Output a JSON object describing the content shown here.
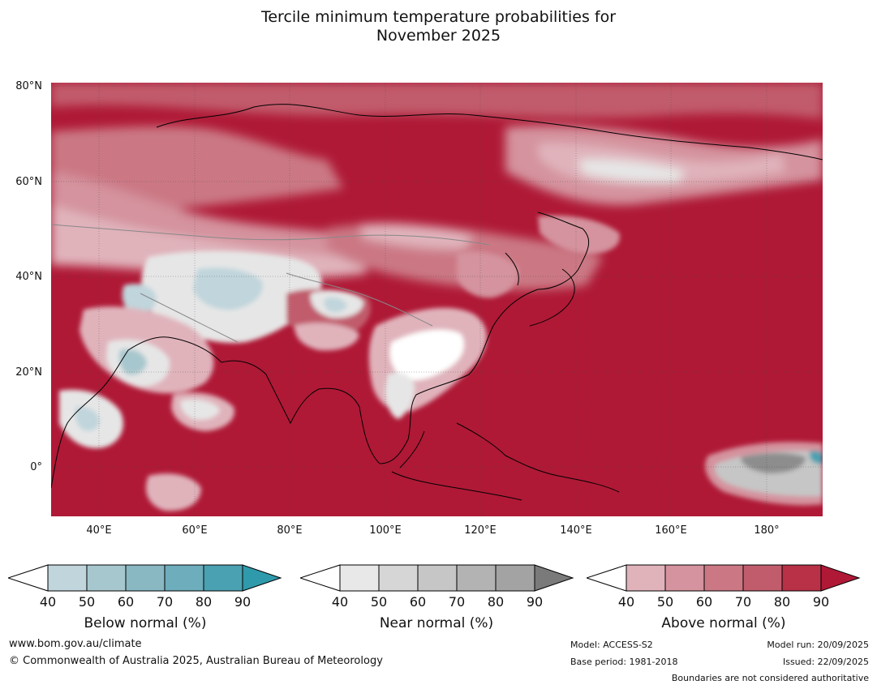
{
  "title": {
    "line1": "Tercile minimum temperature probabilities for",
    "line2": "November 2025"
  },
  "map": {
    "lat_labels": [
      "80°N",
      "60°N",
      "40°N",
      "20°N",
      "0°"
    ],
    "lon_labels": [
      "40°E",
      "60°E",
      "80°E",
      "100°E",
      "120°E",
      "140°E",
      "160°E",
      "180°"
    ],
    "extent": {
      "lon_min": 30,
      "lon_max": 191,
      "lat_min": -10,
      "lat_max": 80
    },
    "region": "Asia",
    "regions": [
      {
        "name": "Arctic coast",
        "category": "above",
        "level": 90
      },
      {
        "name": "Western Siberia",
        "category": "above",
        "level": 70
      },
      {
        "name": "Central Siberia",
        "category": "above",
        "level": 80
      },
      {
        "name": "Eastern Siberia",
        "category": "above",
        "level": 60
      },
      {
        "name": "Central Asia",
        "category": "below",
        "level": 40
      },
      {
        "name": "Arabian Peninsula",
        "category": "below",
        "level": 40
      },
      {
        "name": "Horn of Africa",
        "category": "below",
        "level": 40
      },
      {
        "name": "Southern China",
        "category": "near",
        "level": 40
      },
      {
        "name": "Indian Ocean",
        "category": "above",
        "level": 90
      },
      {
        "name": "Western Pacific",
        "category": "above",
        "level": 90
      },
      {
        "name": "Central Pacific near equator",
        "category": "near",
        "level": 70
      }
    ]
  },
  "legends": [
    {
      "title": "Below normal (%)",
      "ticks": [
        "40",
        "50",
        "60",
        "70",
        "80",
        "90"
      ],
      "colors": [
        "#c0d5dc",
        "#a7c7ce",
        "#89b8c3",
        "#6eadbb",
        "#4aa1b1",
        "#2f9aab"
      ]
    },
    {
      "title": "Near normal (%)",
      "ticks": [
        "40",
        "50",
        "60",
        "70",
        "80",
        "90"
      ],
      "colors": [
        "#e8e8e8",
        "#d6d6d6",
        "#c6c6c6",
        "#b3b3b3",
        "#a3a3a3",
        "#7a7a7a"
      ]
    },
    {
      "title": "Above normal (%)",
      "ticks": [
        "40",
        "50",
        "60",
        "70",
        "80",
        "90"
      ],
      "colors": [
        "#e0b3bb",
        "#d4939e",
        "#cb7884",
        "#c15c6c",
        "#b83146",
        "#af1936"
      ]
    }
  ],
  "footer": {
    "website": "www.bom.gov.au/climate",
    "copyright": "© Commonwealth of Australia 2025, Australian Bureau of Meteorology",
    "model": "Model: ACCESS-S2",
    "base_period": "Base period: 1981-2018",
    "model_run": "Model run: 20/09/2025",
    "issued": "Issued: 22/09/2025",
    "disclaimer": "Boundaries are not considered authoritative"
  }
}
